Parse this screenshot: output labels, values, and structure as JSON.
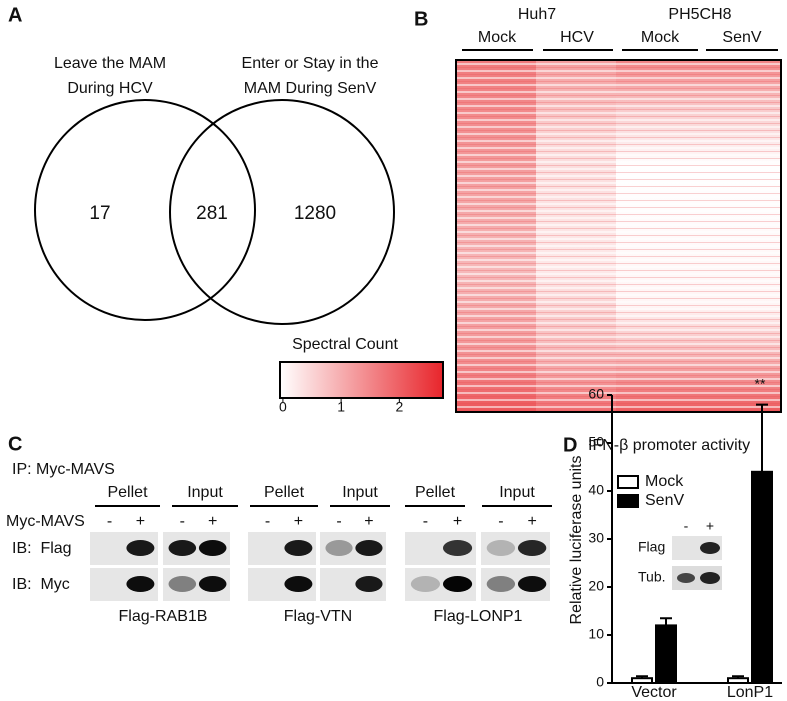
{
  "panel_a": {
    "label": "A",
    "left_title": [
      "Leave the MAM",
      "During HCV"
    ],
    "right_title": [
      "Enter or Stay in the",
      "MAM During SenV"
    ],
    "left_only": "17",
    "overlap": "281",
    "right_only": "1280"
  },
  "panel_b": {
    "label": "B",
    "cell_lines": [
      "Huh7",
      "PH5CH8"
    ],
    "conditions": [
      "Mock",
      "HCV",
      "Mock",
      "SenV"
    ],
    "colorbar": {
      "label": "Spectral Count",
      "lim": [
        -0.05,
        2.75
      ],
      "ticks": [
        0,
        1,
        2
      ]
    }
  },
  "panel_c": {
    "label": "C",
    "ip": "IP: Myc-MAVS",
    "row_label": "Myc-MAVS",
    "blot_rows": [
      "IB:  Flag",
      "IB:  Myc"
    ],
    "groups": [
      {
        "name": "Flag-RAB1B",
        "lanes": [
          {
            "label": "Pellet",
            "signs": [
              "-",
              "+"
            ]
          },
          {
            "label": "Input",
            "signs": [
              "-",
              "+"
            ]
          }
        ]
      },
      {
        "name": "Flag-VTN",
        "lanes": [
          {
            "label": "Pellet",
            "signs": [
              "-",
              "+"
            ]
          },
          {
            "label": "Input",
            "signs": [
              "-",
              "+"
            ]
          }
        ]
      },
      {
        "name": "Flag-LONP1",
        "lanes": [
          {
            "label": "Pellet",
            "signs": [
              "-",
              "+"
            ]
          },
          {
            "label": "Input",
            "signs": [
              "-",
              "+"
            ]
          }
        ]
      }
    ]
  },
  "chart_data": {
    "type": "bar",
    "label": "D",
    "title": "IFN-β promoter activity",
    "y_label": "Relative luciferase units",
    "categories": [
      "Vector",
      "LonP1"
    ],
    "series": [
      {
        "name": "Mock",
        "color": "#ffffff",
        "values": [
          1,
          1
        ],
        "errors": [
          0.4,
          0.4
        ]
      },
      {
        "name": "SenV",
        "color": "#000000",
        "values": [
          12,
          44
        ],
        "errors": [
          1.5,
          14
        ]
      }
    ],
    "ylim": [
      0,
      60
    ],
    "yticks": [
      0,
      10,
      20,
      30,
      40,
      50,
      60
    ],
    "legend": "top-left",
    "annotation": "**",
    "inset": {
      "signs": [
        "-",
        "+"
      ],
      "rows": [
        "Flag",
        "Tub."
      ]
    }
  }
}
